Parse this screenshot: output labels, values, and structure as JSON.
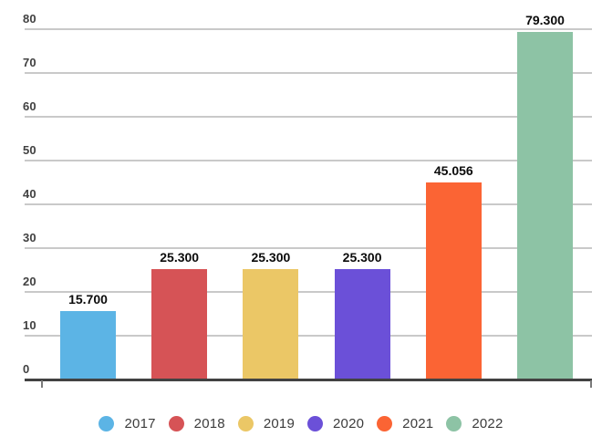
{
  "chart_data": {
    "type": "bar",
    "title": "",
    "xlabel": "",
    "ylabel": "",
    "categories": [
      "2017",
      "2018",
      "2019",
      "2020",
      "2021",
      "2022"
    ],
    "values": [
      15.7,
      25.3,
      25.3,
      25.3,
      45.056,
      79.3
    ],
    "value_labels": [
      "15.700",
      "25.300",
      "25.300",
      "25.300",
      "45.056",
      "79.300"
    ],
    "colors": [
      "#5cb4e5",
      "#d65356",
      "#ebc766",
      "#6b50d8",
      "#fb6434",
      "#8dc3a5"
    ],
    "ylim": [
      0,
      80
    ],
    "yticks": [
      0,
      10,
      20,
      30,
      40,
      50,
      60,
      70,
      80
    ],
    "grid": true,
    "legend_position": "bottom",
    "style_colors": {
      "gridline": "#c9c9c9",
      "axis_line": "#424242",
      "tick_label": "#414141",
      "value_label": "#0b0b0b",
      "legend_label": "#3c3c3c",
      "background": "#ffffff"
    }
  }
}
